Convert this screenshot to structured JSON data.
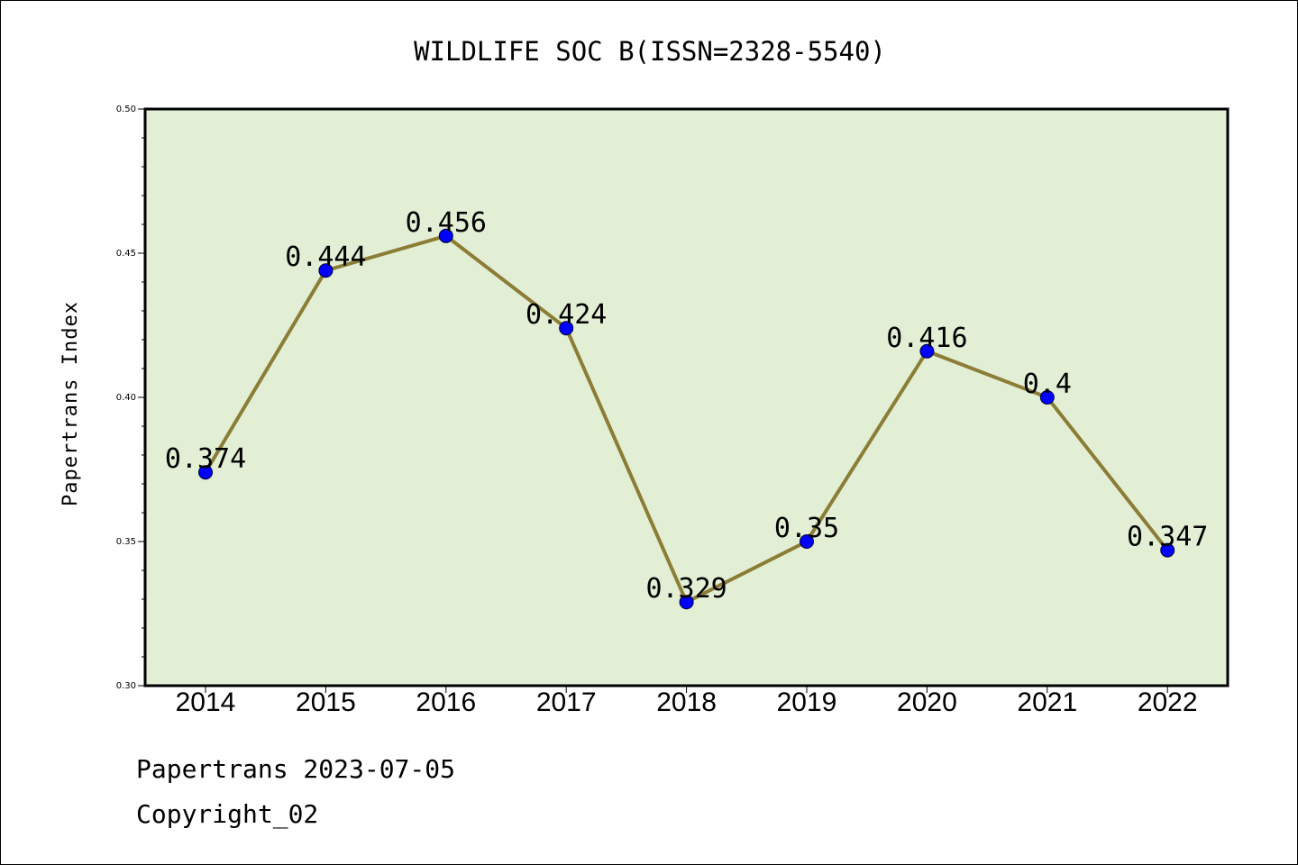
{
  "colors": {
    "plot_background": "#e2efd5",
    "line": "#8b7d36",
    "marker": "#0000ff",
    "axes": "#000000"
  },
  "footer": {
    "line1": "Papertrans 2023-07-05",
    "line2": "Copyright_02"
  },
  "chart_data": {
    "type": "line",
    "title": "WILDLIFE SOC B(ISSN=2328-5540)",
    "xlabel": "",
    "ylabel": "Papertrans Index",
    "categories": [
      "2014",
      "2015",
      "2016",
      "2017",
      "2018",
      "2019",
      "2020",
      "2021",
      "2022"
    ],
    "series": [
      {
        "values": [
          0.374,
          0.444,
          0.456,
          0.424,
          0.329,
          0.35,
          0.416,
          0.4,
          0.347
        ],
        "data_labels": [
          "0.374",
          "0.444",
          "0.456",
          "0.424",
          "0.329",
          "0.35",
          "0.416",
          "0.4",
          "0.347"
        ]
      }
    ],
    "ylim": [
      0.3,
      0.5
    ],
    "yticks": [
      "0.30",
      "0.35",
      "0.40",
      "0.45",
      "0.50"
    ],
    "grid": false,
    "legend": "none",
    "markers": true
  }
}
